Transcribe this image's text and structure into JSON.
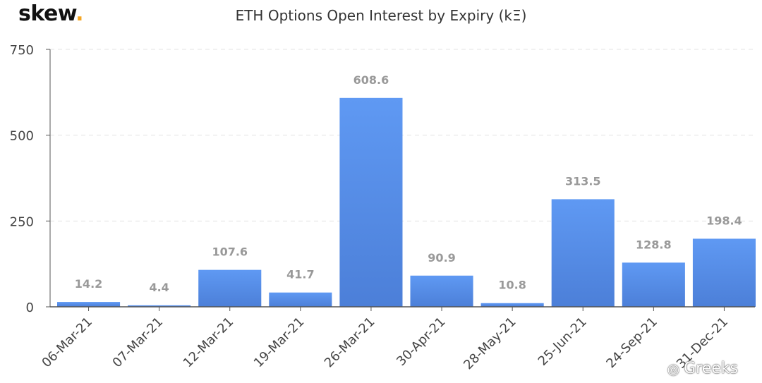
{
  "logo": {
    "text": "skew",
    "dot": "."
  },
  "watermark": {
    "text": "Greeks",
    "icon": "wechat-icon"
  },
  "colors": {
    "bar_top": "#5f99f3",
    "bar_bottom": "#4c7fd8",
    "grid": "#e3e3e3",
    "axis": "#555555"
  },
  "chart_data": {
    "type": "bar",
    "title": "ETH Options Open Interest by Expiry (kΞ)",
    "categories": [
      "06-Mar-21",
      "07-Mar-21",
      "12-Mar-21",
      "19-Mar-21",
      "26-Mar-21",
      "30-Apr-21",
      "28-May-21",
      "25-Jun-21",
      "24-Sep-21",
      "31-Dec-21"
    ],
    "values": [
      14.2,
      4.4,
      107.6,
      41.7,
      608.6,
      90.9,
      10.8,
      313.5,
      128.8,
      198.4
    ],
    "data_labels": [
      "14.2",
      "4.4",
      "107.6",
      "41.7",
      "608.6",
      "90.9",
      "10.8",
      "313.5",
      "128.8",
      "198.4"
    ],
    "yticks": [
      "0",
      "250",
      "500",
      "750"
    ],
    "ylim": [
      0,
      750
    ],
    "xlabel": "",
    "ylabel": "",
    "grid": true,
    "legend": "none"
  }
}
